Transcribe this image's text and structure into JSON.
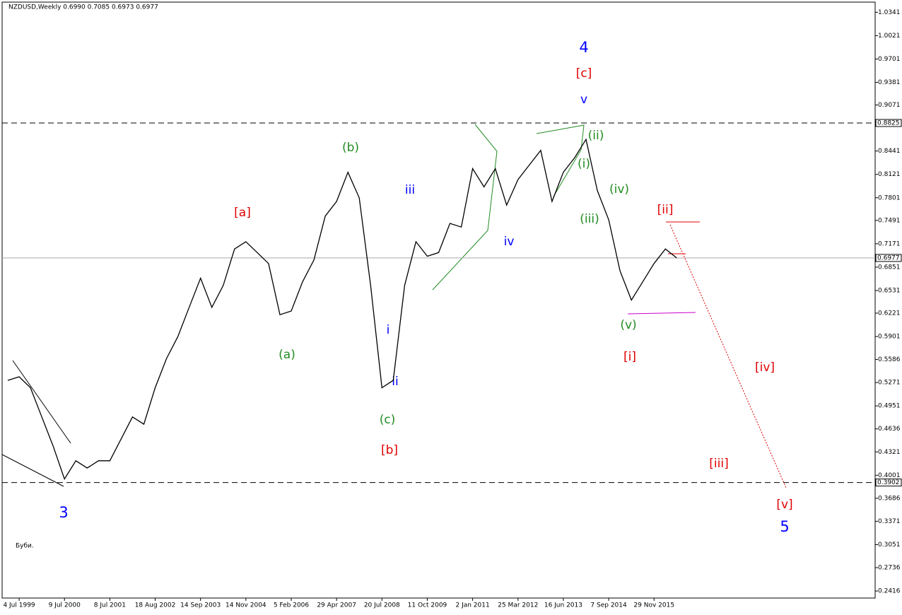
{
  "chart_data": {
    "type": "line",
    "title": "NZDUSD,Weekly  0.6990 0.7085 0.6973 0.6977",
    "note": "Буби.",
    "categories": [
      null,
      "4 Jul 1999",
      null,
      null,
      null,
      "9 Jul 2000",
      null,
      null,
      null,
      "8 Jul 2001",
      null,
      null,
      null,
      "18 Aug 2002",
      null,
      null,
      null,
      "14 Sep 2003",
      null,
      null,
      null,
      "14 Nov 2004",
      null,
      null,
      null,
      "5 Feb 2006",
      null,
      null,
      null,
      "29 Apr 2007",
      null,
      null,
      null,
      "20 Jul 2008",
      null,
      null,
      null,
      "11 Oct 2009",
      null,
      null,
      null,
      "2 Jan 2011",
      null,
      null,
      null,
      "25 Mar 2012",
      null,
      null,
      null,
      "16 Jun 2013",
      null,
      null,
      null,
      "7 Sep 2014",
      null,
      null,
      null,
      "29 Nov 2015",
      null,
      null,
      null,
      null,
      null,
      null,
      null,
      null,
      null,
      null,
      null,
      null,
      null,
      null,
      null,
      null,
      null,
      null,
      null
    ],
    "series": [
      {
        "name": "NZDUSD",
        "color": "#000000",
        "values": [
          0.53,
          0.535,
          0.52,
          0.48,
          0.44,
          0.395,
          0.42,
          0.41,
          0.42,
          0.42,
          0.45,
          0.48,
          0.47,
          0.52,
          0.56,
          0.59,
          0.63,
          0.67,
          0.63,
          0.66,
          0.71,
          0.72,
          0.705,
          0.69,
          0.62,
          0.625,
          0.665,
          0.695,
          0.755,
          0.775,
          0.815,
          0.78,
          0.66,
          0.52,
          0.53,
          0.66,
          0.72,
          0.7,
          0.705,
          0.745,
          0.74,
          0.82,
          0.795,
          0.82,
          0.77,
          0.805,
          0.825,
          0.845,
          0.775,
          0.815,
          0.835,
          0.86,
          0.79,
          0.75,
          0.68,
          0.64,
          0.665,
          0.69,
          0.71,
          0.6977,
          null,
          null,
          null,
          null,
          null,
          null,
          null,
          null,
          null,
          null,
          null,
          null,
          null,
          null,
          null,
          null,
          null
        ]
      }
    ],
    "ylim": [
      0.232,
      1.048
    ],
    "yticks": [
      1.0341,
      1.0021,
      0.9701,
      0.9381,
      0.9071,
      0.8441,
      0.8121,
      0.7801,
      0.7491,
      0.7171,
      0.6851,
      0.6531,
      0.6221,
      0.5901,
      0.5586,
      0.5271,
      0.4951,
      0.4636,
      0.4321,
      0.4001,
      0.3686,
      0.3371,
      0.3051,
      0.2736,
      0.2416
    ],
    "reference_lines": [
      {
        "value": 0.8825,
        "dashed": true
      },
      {
        "value": 0.6977,
        "dashed": false
      },
      {
        "value": 0.3902,
        "dashed": true
      }
    ],
    "annotations": [
      "4",
      "[c]",
      "v",
      "(b)",
      "[a]",
      "iii",
      "iv",
      "(ii)",
      "(i)",
      "(iv)",
      "(iii)",
      "[ii]",
      "(a)",
      "i",
      "ii",
      "(c)",
      "[b]",
      "(v)",
      "[i]",
      "[iv]",
      "[iii]",
      "[v]",
      "5",
      "3"
    ]
  }
}
